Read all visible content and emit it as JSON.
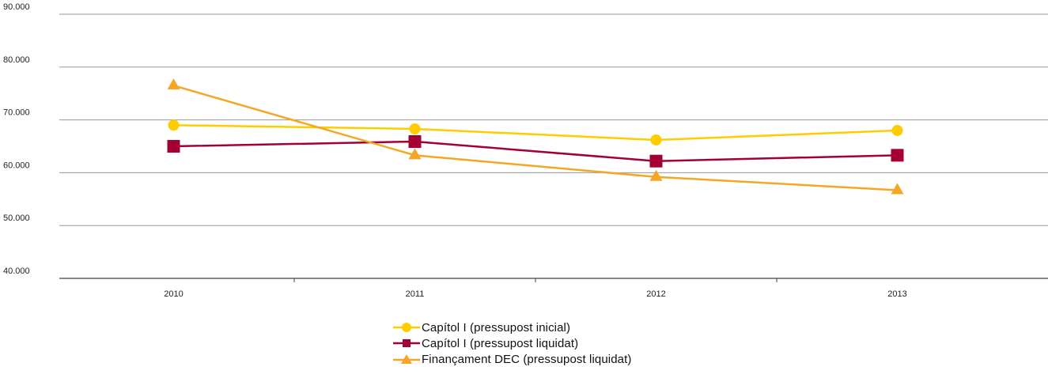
{
  "chart_data": {
    "type": "line",
    "categories": [
      "2010",
      "2011",
      "2012",
      "2013"
    ],
    "ylim": [
      40000,
      90000
    ],
    "yticks": [
      40000,
      50000,
      60000,
      70000,
      80000,
      90000
    ],
    "ytick_labels": [
      "40.000",
      "50.000",
      "60.000",
      "70.000",
      "80.000",
      "90.000"
    ],
    "grid": true,
    "legend_position": "bottom",
    "series": [
      {
        "name": "Capítol I (pressupost inicial)",
        "values": [
          69000,
          68300,
          66200,
          68000
        ],
        "color": "#FFCC00",
        "marker": "circle"
      },
      {
        "name": "Capítol I (pressupost liquidat)",
        "values": [
          65000,
          65900,
          62200,
          63300
        ],
        "color": "#A50034",
        "marker": "square"
      },
      {
        "name": "Finançament DEC (pressupost liquidat)",
        "values": [
          76500,
          63300,
          59200,
          56700
        ],
        "color": "#F5A623",
        "marker": "triangle"
      }
    ]
  }
}
